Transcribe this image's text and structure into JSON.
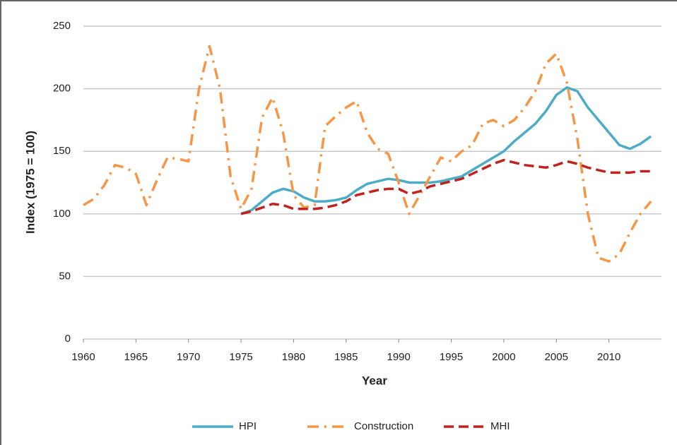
{
  "chart_data": {
    "type": "line",
    "x_label": "Year",
    "y_label": "Index (1975 = 100)",
    "x": [
      1960,
      1961,
      1962,
      1963,
      1964,
      1965,
      1966,
      1967,
      1968,
      1969,
      1970,
      1971,
      1972,
      1973,
      1974,
      1975,
      1976,
      1977,
      1978,
      1979,
      1980,
      1981,
      1982,
      1983,
      1984,
      1985,
      1986,
      1987,
      1988,
      1989,
      1990,
      1991,
      1992,
      1993,
      1994,
      1995,
      1996,
      1997,
      1998,
      1999,
      2000,
      2001,
      2002,
      2003,
      2004,
      2005,
      2006,
      2007,
      2008,
      2009,
      2010,
      2011,
      2012,
      2013,
      2014
    ],
    "series": [
      {
        "name": "HPI",
        "color": "#4bacc6",
        "dash": "solid",
        "values": [
          null,
          null,
          null,
          null,
          null,
          null,
          null,
          null,
          null,
          null,
          null,
          null,
          null,
          null,
          null,
          100,
          103,
          110,
          117,
          120,
          118,
          113,
          110,
          110,
          111,
          113,
          119,
          124,
          126,
          128,
          127,
          125,
          125,
          125,
          126,
          128,
          130,
          135,
          140,
          145,
          150,
          158,
          165,
          172,
          182,
          195,
          201,
          198,
          185,
          175,
          165,
          155,
          152,
          156,
          162
        ]
      },
      {
        "name": "Construction",
        "color": "#f79646",
        "dash": "dashdot",
        "values": [
          107,
          112,
          123,
          139,
          137,
          132,
          107,
          127,
          145,
          144,
          142,
          200,
          234,
          200,
          130,
          104,
          120,
          177,
          193,
          165,
          115,
          105,
          107,
          170,
          178,
          185,
          190,
          165,
          152,
          148,
          125,
          100,
          115,
          130,
          145,
          142,
          150,
          155,
          172,
          175,
          170,
          175,
          185,
          198,
          220,
          228,
          205,
          160,
          100,
          65,
          62,
          68,
          85,
          100,
          110
        ]
      },
      {
        "name": "MHI",
        "color": "#c0221f",
        "dash": "dashed",
        "values": [
          null,
          null,
          null,
          null,
          null,
          null,
          null,
          null,
          null,
          null,
          null,
          null,
          null,
          null,
          null,
          100,
          102,
          105,
          108,
          107,
          104,
          104,
          104,
          105,
          107,
          110,
          115,
          117,
          119,
          120,
          120,
          116,
          118,
          122,
          124,
          126,
          128,
          132,
          136,
          140,
          143,
          141,
          139,
          138,
          137,
          139,
          142,
          140,
          137,
          135,
          133,
          133,
          133,
          134,
          134
        ]
      }
    ],
    "xlim": [
      1960,
      2015
    ],
    "xticks": [
      1960,
      1965,
      1970,
      1975,
      1980,
      1985,
      1990,
      1995,
      2000,
      2005,
      2010
    ],
    "ylim": [
      0,
      250
    ],
    "yticks": [
      0,
      50,
      100,
      150,
      200,
      250
    ],
    "grid": true,
    "legend": "bottom"
  }
}
